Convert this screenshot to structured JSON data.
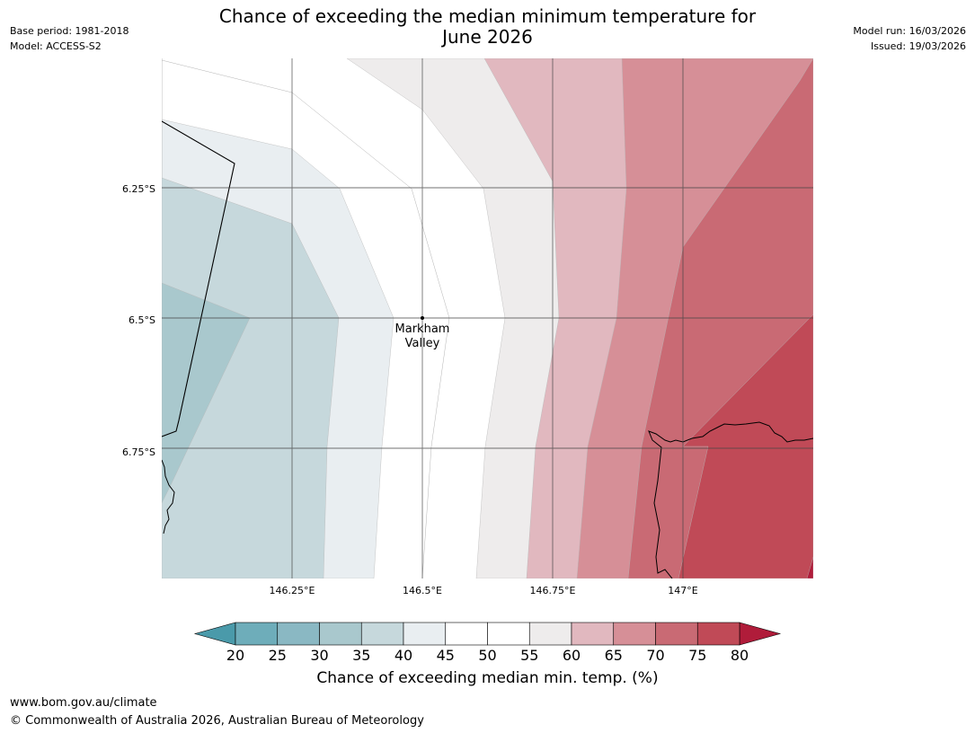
{
  "title_line1": "Chance of exceeding the median minimum temperature for",
  "title_line2": "June 2026",
  "meta_left": {
    "base_period": "Base period: 1981-2018",
    "model": "Model: ACCESS-S2"
  },
  "meta_right": {
    "model_run": "Model run: 16/03/2026",
    "issued": "Issued: 19/03/2026"
  },
  "map": {
    "place": {
      "name_line1": "Markham",
      "name_line2": "Valley",
      "lat": -6.5,
      "lon": 146.5
    },
    "extent": {
      "lon_min": 146.0,
      "lon_max": 147.25,
      "lat_min": -6.99,
      "lat_max": -6.0
    },
    "lat_ticks": [
      {
        "value": -6.25,
        "label": "6.25°S"
      },
      {
        "value": -6.5,
        "label": "6.5°S"
      },
      {
        "value": -6.75,
        "label": "6.75°S"
      }
    ],
    "lon_ticks": [
      {
        "value": 146.25,
        "label": "146.25°E"
      },
      {
        "value": 146.5,
        "label": "146.5°E"
      },
      {
        "value": 146.75,
        "label": "146.75°E"
      },
      {
        "value": 147.0,
        "label": "147°E"
      }
    ]
  },
  "colorbar": {
    "label": "Chance of exceeding median min. temp. (%)",
    "ticks": [
      "20",
      "25",
      "30",
      "35",
      "40",
      "45",
      "50",
      "55",
      "60",
      "65",
      "70",
      "75",
      "80"
    ],
    "under_color": "#4a9aaa",
    "over_color": "#b01c3a",
    "bins": [
      {
        "from": 20,
        "to": 25,
        "color": "#6eadba"
      },
      {
        "from": 25,
        "to": 30,
        "color": "#8ab8c3"
      },
      {
        "from": 30,
        "to": 35,
        "color": "#a9c8cd"
      },
      {
        "from": 35,
        "to": 40,
        "color": "#c6d8dc"
      },
      {
        "from": 40,
        "to": 45,
        "color": "#e9eef1"
      },
      {
        "from": 45,
        "to": 50,
        "color": "#ffffff"
      },
      {
        "from": 50,
        "to": 55,
        "color": "#ffffff"
      },
      {
        "from": 55,
        "to": 60,
        "color": "#eeecec"
      },
      {
        "from": 60,
        "to": 65,
        "color": "#e1b8bf"
      },
      {
        "from": 65,
        "to": 70,
        "color": "#d68f97"
      },
      {
        "from": 70,
        "to": 75,
        "color": "#c96a74"
      },
      {
        "from": 75,
        "to": 80,
        "color": "#c04a57"
      }
    ]
  },
  "footer": {
    "url": "www.bom.gov.au/climate",
    "copyright": "© Commonwealth of Australia 2026, Australian Bureau of Meteorology"
  }
}
